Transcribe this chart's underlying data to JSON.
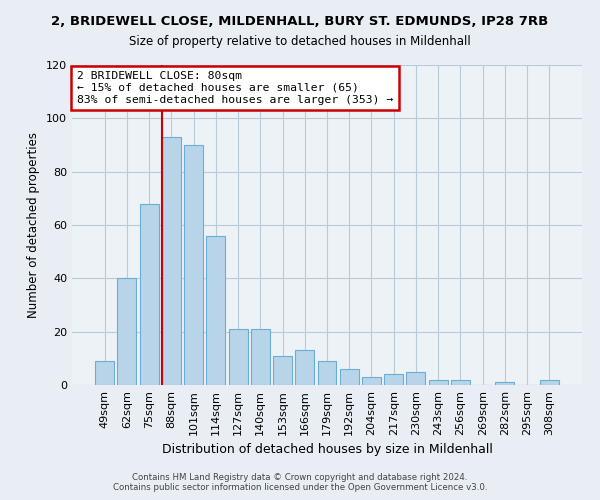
{
  "title_line1": "2, BRIDEWELL CLOSE, MILDENHALL, BURY ST. EDMUNDS, IP28 7RB",
  "title_line2": "Size of property relative to detached houses in Mildenhall",
  "xlabel": "Distribution of detached houses by size in Mildenhall",
  "ylabel": "Number of detached properties",
  "categories": [
    "49sqm",
    "62sqm",
    "75sqm",
    "88sqm",
    "101sqm",
    "114sqm",
    "127sqm",
    "140sqm",
    "153sqm",
    "166sqm",
    "179sqm",
    "192sqm",
    "204sqm",
    "217sqm",
    "230sqm",
    "243sqm",
    "256sqm",
    "269sqm",
    "282sqm",
    "295sqm",
    "308sqm"
  ],
  "values": [
    9,
    40,
    68,
    93,
    90,
    56,
    21,
    21,
    11,
    13,
    9,
    6,
    3,
    4,
    5,
    2,
    2,
    0,
    1,
    0,
    2
  ],
  "bar_color": "#b8d4e8",
  "bar_edge_color": "#6aaed6",
  "vline_color": "#cc0000",
  "annotation_text": "2 BRIDEWELL CLOSE: 80sqm\n← 15% of detached houses are smaller (65)\n83% of semi-detached houses are larger (353) →",
  "annotation_box_edge": "#cc0000",
  "ylim": [
    0,
    120
  ],
  "yticks": [
    0,
    20,
    40,
    60,
    80,
    100,
    120
  ],
  "footer_line1": "Contains HM Land Registry data © Crown copyright and database right 2024.",
  "footer_line2": "Contains public sector information licensed under the Open Government Licence v3.0.",
  "background_color": "#e8eef4",
  "plot_background": "#edf2f7",
  "grid_color": "#b8ccd8"
}
